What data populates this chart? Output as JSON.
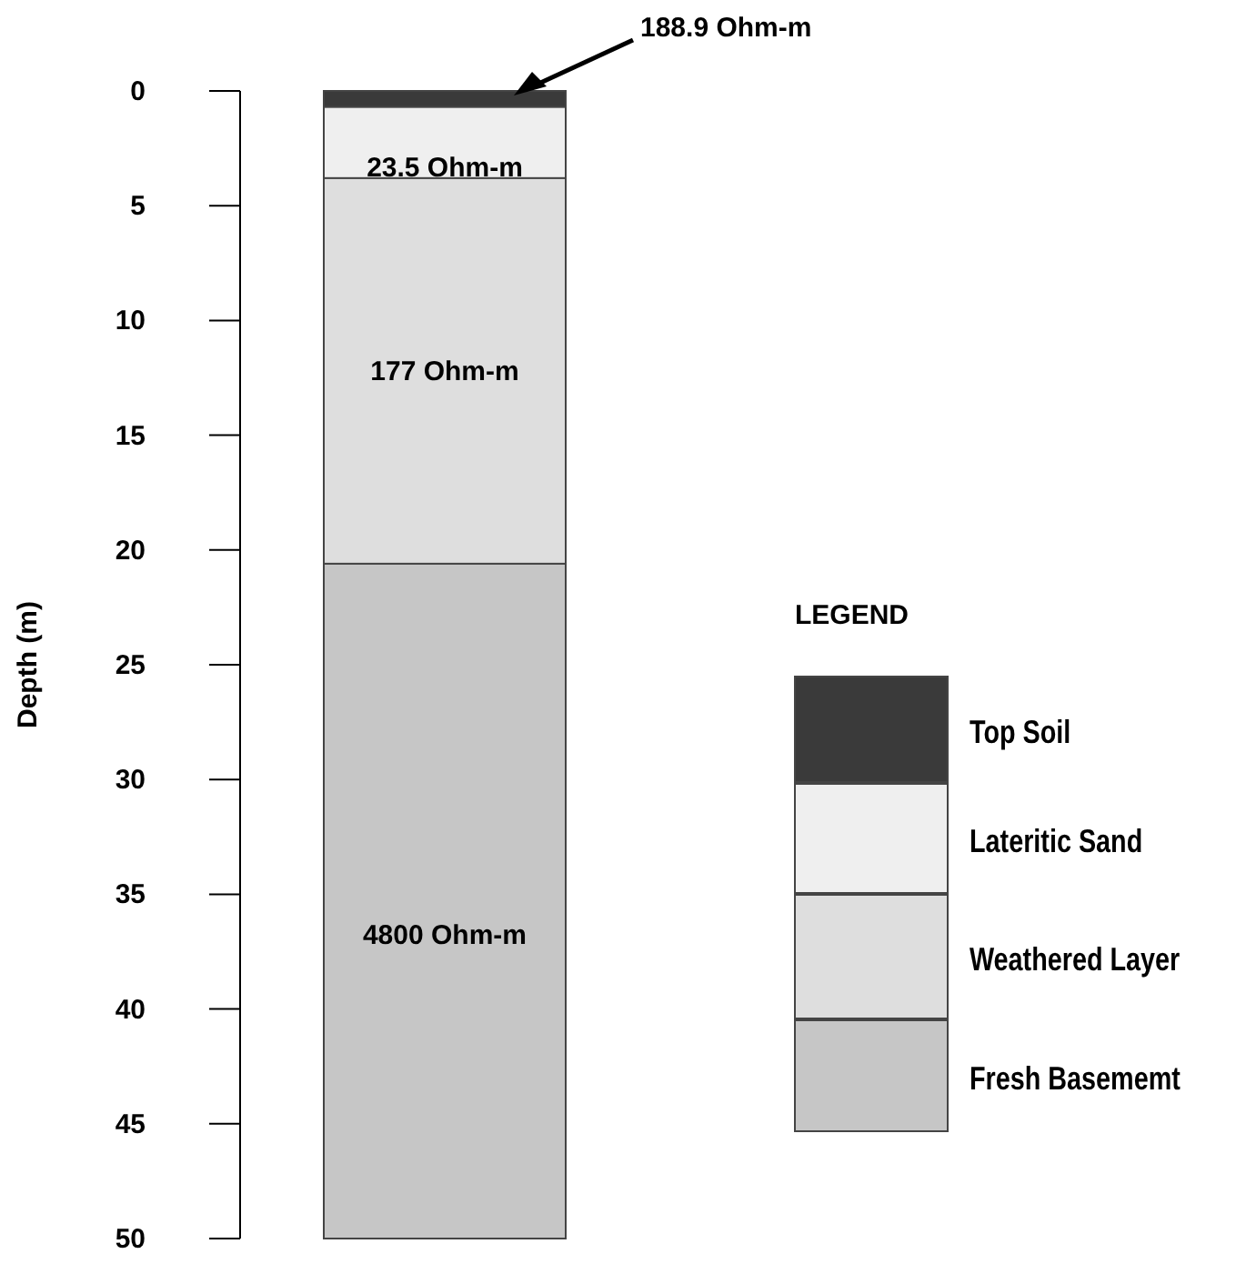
{
  "chart_data": {
    "type": "bar",
    "stacked": true,
    "categories": [
      null
    ],
    "ylabel": "Depth (m)",
    "ylim": [
      50,
      0
    ],
    "yticks": [
      0,
      5,
      10,
      15,
      20,
      25,
      30,
      35,
      40,
      45,
      50
    ],
    "tick_labels": "y",
    "grid": false,
    "legend": "right",
    "legend_title": "LEGEND",
    "series": [
      {
        "name": "Top Soil",
        "color": "#3a3a3a",
        "values": [
          0.7
        ]
      },
      {
        "name": "Lateritic Sand",
        "color": "#efefef",
        "values": [
          3.1
        ]
      },
      {
        "name": "Weathered Layer",
        "color": "#dedede",
        "values": [
          16.8
        ]
      },
      {
        "name": "Fresh Basememt",
        "color": "#c6c6c6",
        "values": [
          29.4
        ]
      }
    ],
    "annotations": [
      "188.9 Ohm-m",
      "23.5 Ohm-m",
      "177 Ohm-m",
      "4800 Ohm-m"
    ]
  }
}
